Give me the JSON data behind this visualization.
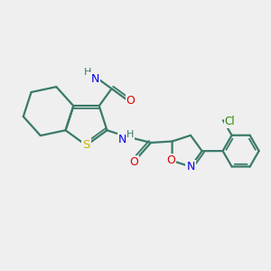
{
  "bg_color": "#efefef",
  "bond_color": "#3a7a6a",
  "bond_lw": 1.6,
  "atom_colors": {
    "S": "#c8b400",
    "N": "#0000ee",
    "O": "#dd0000",
    "Cl": "#228800",
    "H": "#3a7a6a"
  },
  "figsize": [
    3.0,
    3.0
  ],
  "dpi": 100
}
